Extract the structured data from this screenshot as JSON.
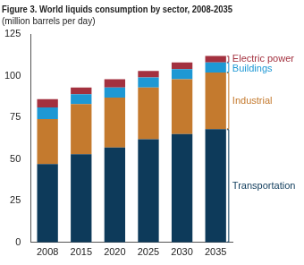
{
  "chart_data": {
    "type": "bar",
    "title": "Figure 3. World liquids consumption by sector, 2008-2035",
    "subtitle": "(million barrels per day)",
    "categories": [
      "2008",
      "2015",
      "2020",
      "2025",
      "2030",
      "2035"
    ],
    "series": [
      {
        "name": "Transportation",
        "color": "#0d3a5a",
        "values": [
          47,
          53,
          57,
          62,
          65,
          68
        ]
      },
      {
        "name": "Industrial",
        "color": "#c47a2e",
        "values": [
          27,
          30,
          30,
          31,
          33,
          34
        ]
      },
      {
        "name": "Buildings",
        "color": "#1e98d4",
        "values": [
          7,
          6,
          6,
          6,
          6,
          6
        ]
      },
      {
        "name": "Electric power",
        "color": "#a3313f",
        "values": [
          5,
          4,
          5,
          4,
          4,
          4
        ]
      }
    ],
    "stacked": true,
    "ylim": [
      0,
      125
    ],
    "yticks": [
      0,
      25,
      50,
      75,
      100,
      125
    ],
    "grid": false
  }
}
